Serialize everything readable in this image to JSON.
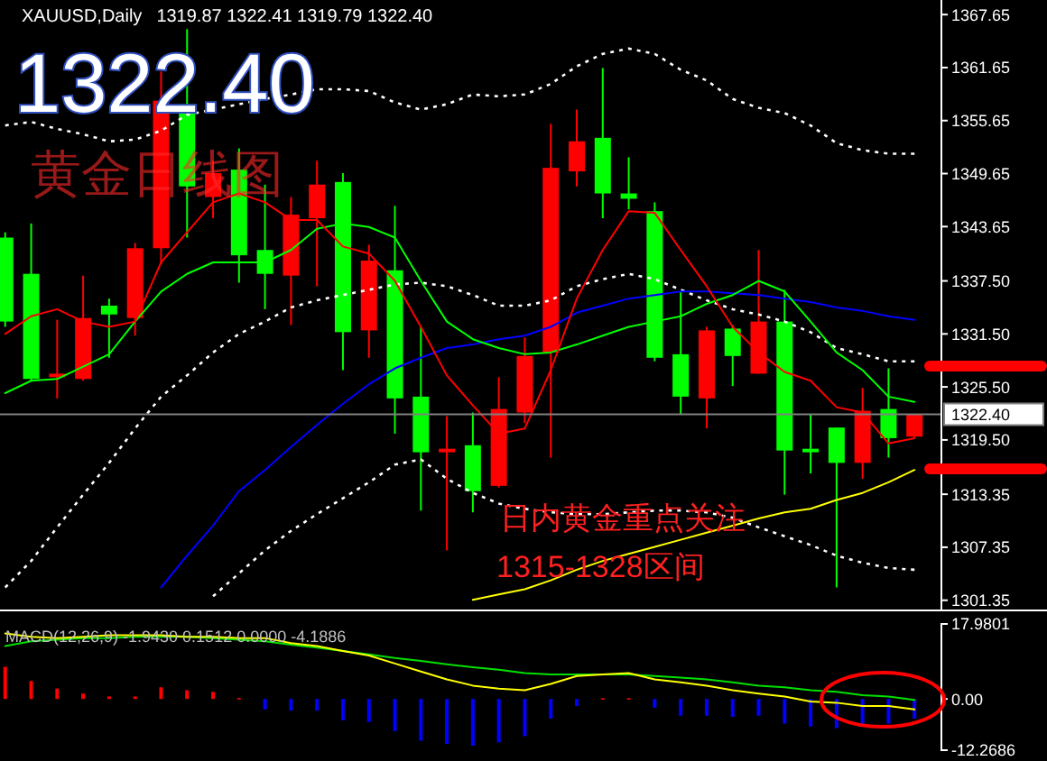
{
  "chart_data": [
    {
      "type": "candlestick",
      "title": "XAUUSD,Daily",
      "subtitle": "1319.87 1322.41 1319.79 1322.40",
      "categories": [
        null,
        null,
        null,
        null,
        null,
        null,
        null,
        null,
        null,
        null,
        null,
        null,
        null,
        null,
        null,
        null,
        null,
        null,
        null,
        null,
        null,
        null,
        null,
        null,
        null,
        null,
        null,
        null,
        null,
        null,
        null,
        null,
        null,
        null,
        null,
        null
      ],
      "ohlc": [
        [
          1342.4,
          1343.0,
          1332.3,
          1332.9
        ],
        [
          1338.3,
          1344.0,
          1326.2,
          1326.4
        ],
        [
          1326.6,
          1333.1,
          1324.2,
          1327.0
        ],
        [
          1326.4,
          1338.1,
          1326.2,
          1333.3
        ],
        [
          1334.7,
          1335.5,
          1328.8,
          1333.7
        ],
        [
          1333.3,
          1341.8,
          1331.3,
          1341.2
        ],
        [
          1341.2,
          1361.2,
          1339.4,
          1357.9
        ],
        [
          1357.5,
          1366.0,
          1342.4,
          1348.2
        ],
        [
          1347.0,
          1351.1,
          1344.6,
          1349.7
        ],
        [
          1350.1,
          1352.5,
          1337.3,
          1340.4
        ],
        [
          1341.0,
          1348.4,
          1334.3,
          1338.3
        ],
        [
          1338.1,
          1347.0,
          1332.5,
          1345.0
        ],
        [
          1344.6,
          1351.1,
          1336.9,
          1348.4
        ],
        [
          1348.7,
          1349.7,
          1327.4,
          1331.7
        ],
        [
          1331.9,
          1341.6,
          1328.8,
          1339.8
        ],
        [
          1338.7,
          1346.0,
          1320.2,
          1324.2
        ],
        [
          1324.4,
          1332.3,
          1311.5,
          1318.1
        ],
        [
          1318.1,
          1322.2,
          1307.0,
          1318.5
        ],
        [
          1318.9,
          1322.6,
          1311.3,
          1313.7
        ],
        [
          1314.3,
          1326.6,
          1314.1,
          1323.0
        ],
        [
          1322.6,
          1331.1,
          1321.4,
          1329.0
        ],
        [
          1329.4,
          1355.3,
          1317.5,
          1350.3
        ],
        [
          1349.9,
          1356.9,
          1348.2,
          1353.3
        ],
        [
          1353.7,
          1361.6,
          1344.6,
          1347.4
        ],
        [
          1347.4,
          1351.5,
          1345.6,
          1346.8
        ],
        [
          1345.4,
          1346.4,
          1328.4,
          1328.8
        ],
        [
          1329.2,
          1336.3,
          1322.4,
          1324.4
        ],
        [
          1324.2,
          1332.3,
          1320.8,
          1331.9
        ],
        [
          1332.1,
          1332.5,
          1325.6,
          1329.0
        ],
        [
          1327.0,
          1341.0,
          1327.0,
          1332.9
        ],
        [
          1332.9,
          1336.5,
          1313.3,
          1318.3
        ],
        [
          1318.5,
          1322.4,
          1315.7,
          1318.1
        ],
        [
          1320.9,
          1320.9,
          1302.8,
          1316.9
        ],
        [
          1316.9,
          1325.4,
          1315.1,
          1322.8
        ],
        [
          1323.0,
          1327.6,
          1317.5,
          1319.7
        ],
        [
          1319.87,
          1322.41,
          1319.79,
          1322.4
        ]
      ],
      "colors": [
        "#00ff00",
        "#00ff00",
        "#ff0000",
        "#ff0000",
        "#00ff00",
        "#ff0000",
        "#ff0000",
        "#00ff00",
        "#ff0000",
        "#00ff00",
        "#00ff00",
        "#ff0000",
        "#ff0000",
        "#00ff00",
        "#ff0000",
        "#00ff00",
        "#00ff00",
        "#ff0000",
        "#00ff00",
        "#ff0000",
        "#ff0000",
        "#ff0000",
        "#ff0000",
        "#00ff00",
        "#00ff00",
        "#00ff00",
        "#00ff00",
        "#ff0000",
        "#00ff00",
        "#ff0000",
        "#00ff00",
        "#00ff00",
        "#00ff00",
        "#ff0000",
        "#00ff00",
        "#ff0000"
      ],
      "series": [
        {
          "type": "line",
          "color": "#ffffff",
          "line_style": "dotted",
          "values": [
            1355.1,
            1355.5,
            1354.7,
            1354.1,
            1353.3,
            1353.5,
            1354.5,
            1356.3,
            1356.9,
            1357.5,
            1358.1,
            1358.6,
            1359.2,
            1359.2,
            1359.0,
            1357.7,
            1356.9,
            1357.5,
            1358.6,
            1358.4,
            1358.6,
            1359.8,
            1361.8,
            1363.2,
            1363.8,
            1363.2,
            1361.4,
            1360.2,
            1358.1,
            1357.1,
            1356.5,
            1355.1,
            1353.1,
            1352.3,
            1351.9,
            1351.9
          ]
        },
        {
          "type": "line",
          "color": "#ffffff",
          "line_style": "dotted",
          "values": [
            1302.8,
            1305.8,
            1309.6,
            1313.3,
            1316.9,
            1320.8,
            1324.4,
            1326.8,
            1329.4,
            1331.5,
            1332.9,
            1334.5,
            1335.3,
            1335.9,
            1336.5,
            1337.1,
            1337.3,
            1336.9,
            1335.9,
            1334.7,
            1334.7,
            1335.3,
            1336.9,
            1337.7,
            1338.3,
            1337.7,
            1336.5,
            1335.3,
            1334.3,
            1333.7,
            1332.9,
            1331.7,
            1329.9,
            1329.2,
            1328.4,
            1328.4
          ]
        },
        {
          "type": "line",
          "color": "#ffffff",
          "line_style": "dotted",
          "values": [
            null,
            null,
            null,
            null,
            null,
            null,
            null,
            null,
            1301.8,
            1304.4,
            1307.0,
            1309.2,
            1311.1,
            1312.9,
            1314.7,
            1316.7,
            1317.3,
            1315.1,
            1313.5,
            1312.3,
            1311.7,
            1311.3,
            1311.1,
            1311.1,
            1311.3,
            1311.5,
            1311.5,
            1311.3,
            1310.7,
            1309.6,
            1308.6,
            1307.6,
            1306.4,
            1305.6,
            1305.0,
            1304.8
          ]
        },
        {
          "type": "line",
          "color": "#0000ff",
          "line_style": "solid",
          "values": [
            null,
            null,
            null,
            null,
            null,
            null,
            1302.8,
            1306.4,
            1309.8,
            1313.7,
            1316.1,
            1318.7,
            1321.2,
            1323.6,
            1325.8,
            1327.6,
            1328.8,
            1329.9,
            1330.3,
            1330.9,
            1331.3,
            1332.3,
            1333.9,
            1334.7,
            1335.5,
            1335.9,
            1336.3,
            1336.3,
            1336.1,
            1335.9,
            1335.5,
            1335.1,
            1334.5,
            1334.1,
            1333.5,
            1333.1
          ]
        },
        {
          "type": "line",
          "color": "#ffff00",
          "line_style": "solid",
          "values": [
            null,
            null,
            null,
            null,
            null,
            null,
            null,
            null,
            null,
            null,
            null,
            null,
            null,
            null,
            null,
            null,
            null,
            null,
            1301.4,
            1302.0,
            1302.6,
            1303.6,
            1304.8,
            1305.8,
            1306.6,
            1307.4,
            1308.2,
            1309.0,
            1309.8,
            1310.6,
            1311.3,
            1311.7,
            1312.7,
            1313.5,
            1314.7,
            1316.1
          ]
        },
        {
          "type": "line",
          "color": "#00ff00",
          "line_style": "solid",
          "values": [
            1324.8,
            1326.2,
            1326.4,
            1327.8,
            1329.2,
            1332.9,
            1336.3,
            1338.3,
            1339.6,
            1339.6,
            1339.6,
            1341.0,
            1343.4,
            1344.0,
            1343.6,
            1342.4,
            1337.5,
            1332.9,
            1330.9,
            1329.9,
            1329.2,
            1329.4,
            1330.3,
            1331.3,
            1332.3,
            1332.9,
            1333.5,
            1334.9,
            1335.9,
            1337.5,
            1336.3,
            1332.9,
            1329.4,
            1327.4,
            1324.4,
            1323.8
          ]
        },
        {
          "type": "line",
          "color": "#ff0000",
          "line_style": "solid",
          "values": [
            1331.5,
            1333.5,
            1334.3,
            1332.9,
            1332.3,
            1332.9,
            1339.6,
            1343.0,
            1346.4,
            1347.4,
            1346.4,
            1344.4,
            1344.4,
            1341.4,
            1340.6,
            1337.5,
            1332.3,
            1326.8,
            1323.4,
            1320.2,
            1320.8,
            1327.4,
            1335.5,
            1341.0,
            1345.4,
            1345.2,
            1341.0,
            1336.9,
            1332.3,
            1329.4,
            1327.2,
            1326.2,
            1323.2,
            1322.6,
            1319.1,
            1319.7
          ]
        }
      ],
      "ylim": [
        1300.3,
        1369.3
      ],
      "yticks": [
        1367.65,
        1361.65,
        1355.65,
        1349.65,
        1343.65,
        {
          "value": 1337.5,
          "label": "1337.50"
        },
        {
          "value": 1331.5,
          "label": "1331.50"
        },
        {
          "value": 1325.5,
          "label": "1325.50"
        },
        {
          "value": 1319.5,
          "label": "1319.50"
        },
        1313.35,
        1307.35,
        1301.35
      ],
      "tick_labels": "y",
      "ref_lines": [
        {
          "axis": "y",
          "value": 1322.4,
          "label": "1322.40",
          "color": "#808080"
        }
      ],
      "annotations": [
        "1322.40",
        "黄金日线图",
        "日内黄金重点关注",
        "1315-1328区间"
      ]
    },
    {
      "type": "bar",
      "title": "MACD(12,26,9) -1.9430 0.1512 0.0000 -4.1886",
      "categories": [
        null,
        null,
        null,
        null,
        null,
        null,
        null,
        null,
        null,
        null,
        null,
        null,
        null,
        null,
        null,
        null,
        null,
        null,
        null,
        null,
        null,
        null,
        null,
        null,
        null,
        null,
        null,
        null,
        null,
        null,
        null,
        null,
        null,
        null,
        null,
        null
      ],
      "series": [
        {
          "type": "bar",
          "values": [
            7.7,
            4.3,
            2.5,
            1.3,
            0.6,
            0.6,
            2.8,
            2.1,
            1.7,
            0.2,
            -2.5,
            -2.8,
            -2.8,
            -5.1,
            -5.5,
            -7.7,
            -10.0,
            -10.8,
            -11.2,
            -10.4,
            -8.9,
            -4.7,
            -1.7,
            0.2,
            0.2,
            -2.1,
            -4.0,
            -4.0,
            -4.3,
            -4.0,
            -5.9,
            -6.6,
            -7.0,
            -6.2,
            -5.9,
            -4.7
          ],
          "colors": [
            "#ff0000",
            "#ff0000",
            "#ff0000",
            "#ff0000",
            "#ff0000",
            "#ff0000",
            "#ff0000",
            "#ff0000",
            "#ff0000",
            "#ff0000",
            "#0000ff",
            "#0000ff",
            "#0000ff",
            "#0000ff",
            "#0000ff",
            "#0000ff",
            "#0000ff",
            "#0000ff",
            "#0000ff",
            "#0000ff",
            "#0000ff",
            "#0000ff",
            "#0000ff",
            "#ff0000",
            "#ff0000",
            "#0000ff",
            "#0000ff",
            "#0000ff",
            "#0000ff",
            "#0000ff",
            "#0000ff",
            "#0000ff",
            "#0000ff",
            "#0000ff",
            "#0000ff",
            "#0000ff"
          ]
        },
        {
          "type": "line",
          "color": "#00e000",
          "line_style": "solid",
          "values": [
            12.7,
            13.8,
            14.2,
            14.6,
            14.6,
            14.9,
            14.9,
            14.9,
            14.6,
            14.2,
            13.8,
            13.0,
            12.3,
            11.5,
            10.7,
            9.8,
            9.1,
            8.3,
            7.6,
            7.0,
            6.2,
            5.9,
            5.9,
            5.9,
            5.9,
            5.5,
            5.1,
            4.7,
            4.0,
            3.2,
            2.8,
            2.1,
            1.7,
            0.9,
            0.6,
            -0.2
          ]
        },
        {
          "type": "line",
          "color": "#ffff00",
          "line_style": "solid",
          "values": [
            15.7,
            14.9,
            14.6,
            14.9,
            15.3,
            15.3,
            15.3,
            14.9,
            14.9,
            14.6,
            14.6,
            13.4,
            12.7,
            11.5,
            10.4,
            8.5,
            6.6,
            4.7,
            3.2,
            2.5,
            2.1,
            3.6,
            5.5,
            5.9,
            6.2,
            4.7,
            4.0,
            3.2,
            2.1,
            1.3,
            0.6,
            -0.6,
            -0.9,
            -1.7,
            -1.7,
            -2.5
          ]
        }
      ],
      "ylim": [
        -12.2686,
        17.9801
      ],
      "yticks": [
        17.9801,
        {
          "value": 0,
          "label": "0.00"
        },
        -12.2686
      ],
      "tick_labels": "y"
    }
  ]
}
